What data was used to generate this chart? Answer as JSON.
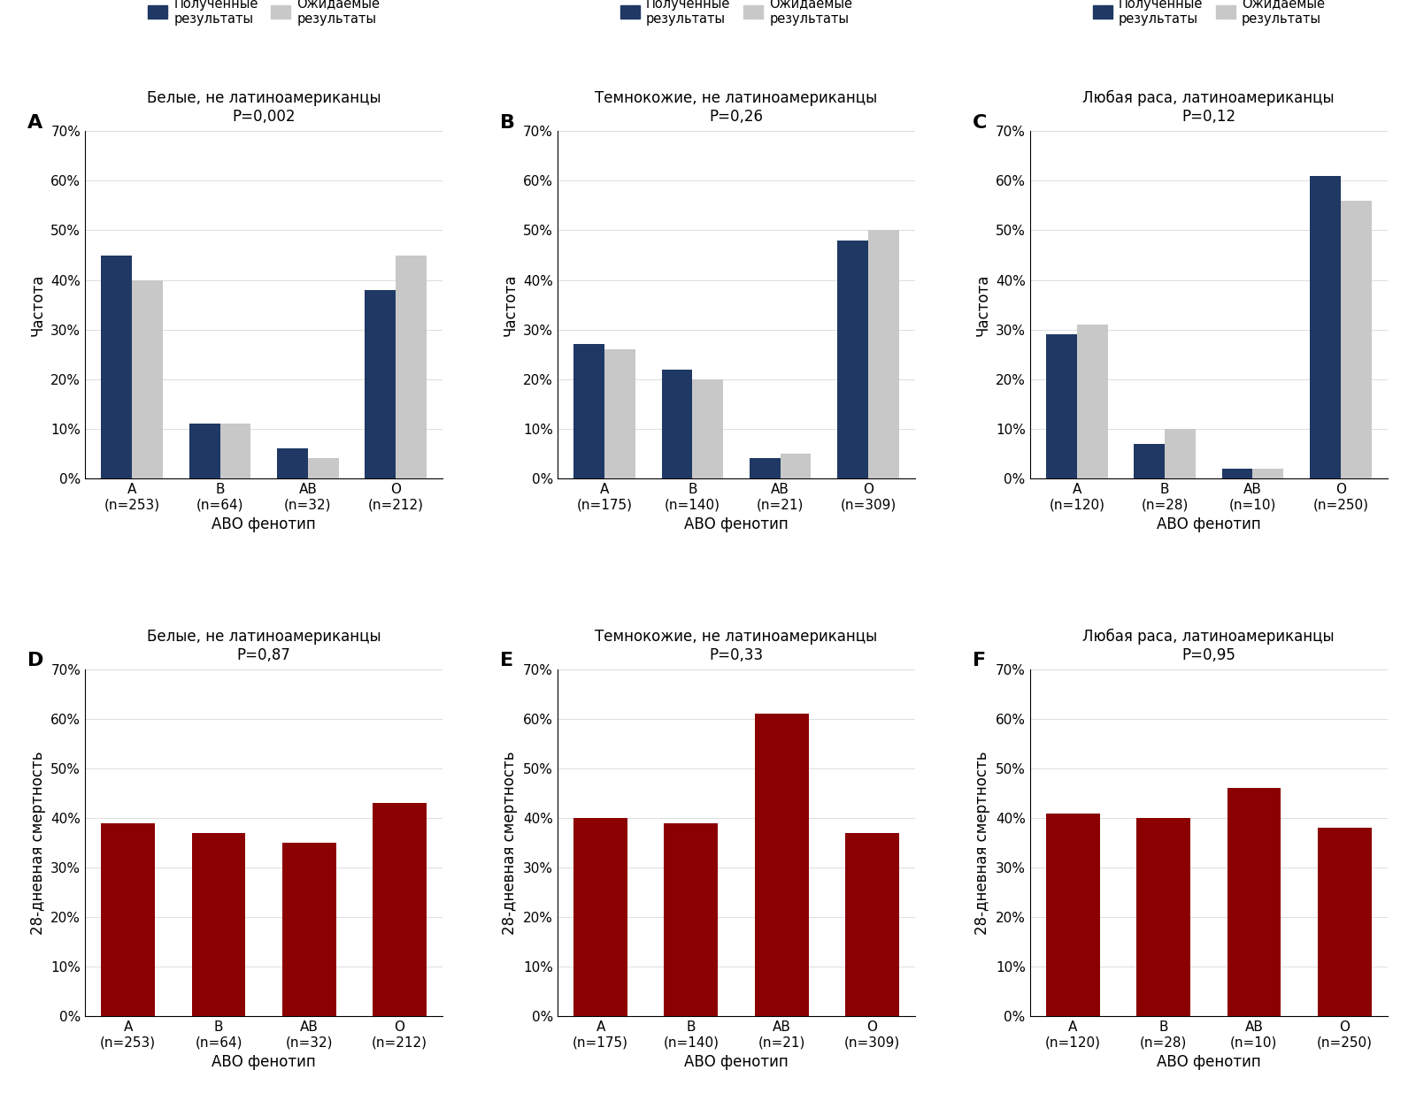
{
  "panels": {
    "A": {
      "label": "A",
      "title": "Белые, не латиноамериканцы",
      "pvalue": "P=0,002",
      "categories": [
        "A",
        "B",
        "AB",
        "O"
      ],
      "ns": [
        253,
        64,
        32,
        212
      ],
      "observed": [
        0.45,
        0.11,
        0.06,
        0.38
      ],
      "expected": [
        0.4,
        0.11,
        0.04,
        0.45
      ],
      "ylabel": "Частота",
      "row": 0,
      "col": 0
    },
    "B": {
      "label": "B",
      "title": "Темнокожие, не латиноамериканцы",
      "pvalue": "P=0,26",
      "categories": [
        "A",
        "B",
        "AB",
        "O"
      ],
      "ns": [
        175,
        140,
        21,
        309
      ],
      "observed": [
        0.27,
        0.22,
        0.04,
        0.48
      ],
      "expected": [
        0.26,
        0.2,
        0.05,
        0.5
      ],
      "ylabel": "Частота",
      "row": 0,
      "col": 1
    },
    "C": {
      "label": "C",
      "title": "Любая раса, латиноамериканцы",
      "pvalue": "P=0,12",
      "categories": [
        "A",
        "B",
        "AB",
        "O"
      ],
      "ns": [
        120,
        28,
        10,
        250
      ],
      "observed": [
        0.29,
        0.07,
        0.02,
        0.61
      ],
      "expected": [
        0.31,
        0.1,
        0.02,
        0.56
      ],
      "ylabel": "Частота",
      "row": 0,
      "col": 2
    },
    "D": {
      "label": "D",
      "title": "Белые, не латиноамериканцы",
      "pvalue": "P=0,87",
      "categories": [
        "A",
        "B",
        "AB",
        "O"
      ],
      "ns": [
        253,
        64,
        32,
        212
      ],
      "observed": [
        0.39,
        0.37,
        0.35,
        0.43
      ],
      "expected": null,
      "ylabel": "28-дневная смертность",
      "row": 1,
      "col": 0
    },
    "E": {
      "label": "E",
      "title": "Темнокожие, не латиноамериканцы",
      "pvalue": "P=0,33",
      "categories": [
        "A",
        "B",
        "AB",
        "O"
      ],
      "ns": [
        175,
        140,
        21,
        309
      ],
      "observed": [
        0.4,
        0.39,
        0.61,
        0.37
      ],
      "expected": null,
      "ylabel": "28-дневная смертность",
      "row": 1,
      "col": 1
    },
    "F": {
      "label": "F",
      "title": "Любая раса, латиноамериканцы",
      "pvalue": "P=0,95",
      "categories": [
        "A",
        "B",
        "AB",
        "O"
      ],
      "ns": [
        120,
        28,
        10,
        250
      ],
      "observed": [
        0.41,
        0.4,
        0.46,
        0.38
      ],
      "expected": null,
      "ylabel": "28-дневная смертность",
      "row": 1,
      "col": 2
    }
  },
  "observed_color_top": "#1f3864",
  "expected_color": "#c8c8c8",
  "observed_color_bottom": "#8b0000",
  "legend_label_obs": "Полученные\nрезультаты",
  "legend_label_exp": "Ожидаемые\nрезультаты",
  "xlabel": "АВО фенотип",
  "bar_width": 0.35,
  "ylim": [
    0,
    0.7
  ],
  "yticks": [
    0,
    0.1,
    0.2,
    0.3,
    0.4,
    0.5,
    0.6,
    0.7
  ],
  "yticklabels": [
    "0%",
    "10%",
    "20%",
    "30%",
    "40%",
    "50%",
    "60%",
    "70%"
  ],
  "background_color": "#ffffff"
}
